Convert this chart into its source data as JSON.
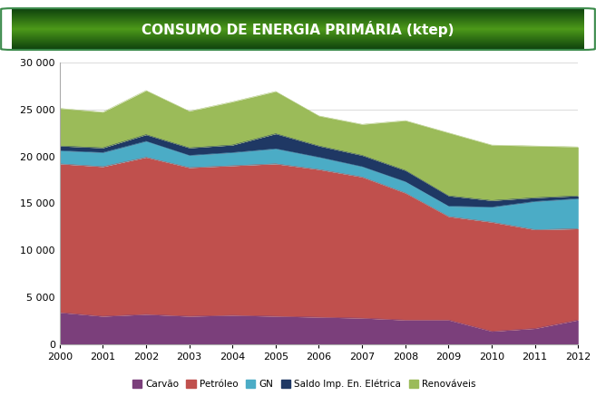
{
  "title": "CONSUMO DE ENERGIA PRIMÁRIA (ktep)",
  "years": [
    2000,
    2001,
    2002,
    2003,
    2004,
    2005,
    2006,
    2007,
    2008,
    2009,
    2010,
    2011,
    2012
  ],
  "series": {
    "Carvão": [
      3400,
      3000,
      3200,
      3000,
      3100,
      3000,
      2900,
      2800,
      2600,
      2600,
      1400,
      1700,
      2600
    ],
    "Petróleo": [
      15800,
      15900,
      16700,
      15800,
      15900,
      16200,
      15700,
      15000,
      13500,
      11000,
      11600,
      10500,
      9700
    ],
    "GN": [
      1400,
      1500,
      1700,
      1300,
      1400,
      1600,
      1300,
      1100,
      1200,
      1100,
      1600,
      3000,
      3200
    ],
    "Saldo Imp. En. Elétrica": [
      500,
      500,
      700,
      800,
      800,
      1600,
      1200,
      1200,
      1200,
      1100,
      700,
      400,
      300
    ],
    "Renováveis": [
      4000,
      3800,
      4700,
      3900,
      4600,
      4500,
      3200,
      3300,
      5300,
      6700,
      5900,
      5500,
      5200
    ]
  },
  "colors": {
    "Carvão": "#7B3F7B",
    "Petróleo": "#C0504D",
    "GN": "#4BACC6",
    "Saldo Imp. En. Elétrica": "#1F3864",
    "Renováveis": "#9BBB59"
  },
  "ylim": [
    0,
    30000
  ],
  "yticks": [
    0,
    5000,
    10000,
    15000,
    20000,
    25000,
    30000
  ],
  "bg_color": "#FFFFFF",
  "title_color": "#FFFFFF",
  "title_fontsize": 11,
  "chart_bg": "#FFFFFF"
}
